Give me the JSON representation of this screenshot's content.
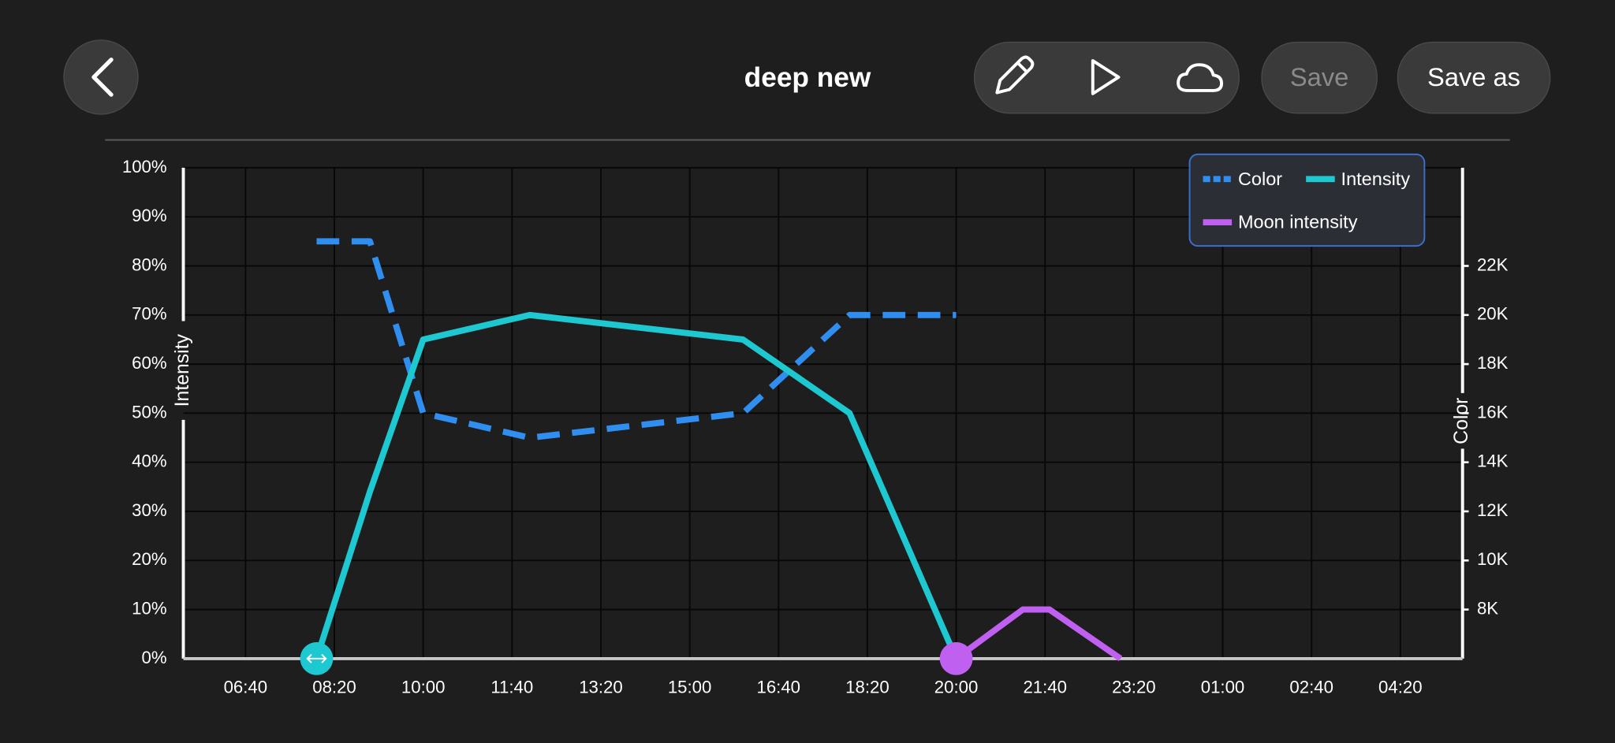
{
  "header": {
    "title": "deep new",
    "save": "Save",
    "save_as": "Save as"
  },
  "chart_data": {
    "type": "line",
    "y_label": "Intensity",
    "y2_label": "Color",
    "xlim": [
      330,
      1770
    ],
    "xticks": [
      {
        "value": 400,
        "label": "06:40"
      },
      {
        "value": 500,
        "label": "08:20"
      },
      {
        "value": 600,
        "label": "10:00"
      },
      {
        "value": 700,
        "label": "11:40"
      },
      {
        "value": 800,
        "label": "13:20"
      },
      {
        "value": 900,
        "label": "15:00"
      },
      {
        "value": 1000,
        "label": "16:40"
      },
      {
        "value": 1100,
        "label": "18:20"
      },
      {
        "value": 1200,
        "label": "20:00"
      },
      {
        "value": 1300,
        "label": "21:40"
      },
      {
        "value": 1400,
        "label": "23:20"
      },
      {
        "value": 1500,
        "label": "01:00"
      },
      {
        "value": 1600,
        "label": "02:40"
      },
      {
        "value": 1700,
        "label": "04:20"
      }
    ],
    "ylim": [
      0,
      100
    ],
    "yticks": [
      {
        "value": 0,
        "label": "0%"
      },
      {
        "value": 10,
        "label": "10%"
      },
      {
        "value": 20,
        "label": "20%"
      },
      {
        "value": 30,
        "label": "30%"
      },
      {
        "value": 40,
        "label": "40%"
      },
      {
        "value": 50,
        "label": "50%"
      },
      {
        "value": 60,
        "label": "60%"
      },
      {
        "value": 70,
        "label": "70%"
      },
      {
        "value": 80,
        "label": "80%"
      },
      {
        "value": 90,
        "label": "90%"
      },
      {
        "value": 100,
        "label": "100%"
      }
    ],
    "y2lim": [
      6000,
      26000
    ],
    "y2ticks": [
      {
        "value": 8000,
        "label": "8K"
      },
      {
        "value": 10000,
        "label": "10K"
      },
      {
        "value": 12000,
        "label": "12K"
      },
      {
        "value": 14000,
        "label": "14K"
      },
      {
        "value": 16000,
        "label": "16K"
      },
      {
        "value": 18000,
        "label": "18K"
      },
      {
        "value": 20000,
        "label": "20K"
      },
      {
        "value": 22000,
        "label": "22K"
      }
    ],
    "grid": true,
    "legend": "upper right",
    "series": [
      {
        "name": "Color",
        "color": "#2f8ef0",
        "dashed": true,
        "axis": "y2",
        "x": [
          480,
          540,
          600,
          720,
          960,
          1080,
          1200
        ],
        "values": [
          23000,
          23000,
          16000,
          15000,
          16000,
          20000,
          20000
        ]
      },
      {
        "name": "Intensity",
        "color": "#1ec8d0",
        "x": [
          480,
          540,
          600,
          720,
          960,
          1080,
          1200
        ],
        "values": [
          0,
          34,
          65,
          70,
          65,
          50,
          0
        ]
      },
      {
        "name": "Moon intensity",
        "color": "#c060f0",
        "x": [
          1200,
          1275,
          1305,
          1385
        ],
        "values": [
          0,
          10,
          10,
          0
        ]
      }
    ]
  }
}
